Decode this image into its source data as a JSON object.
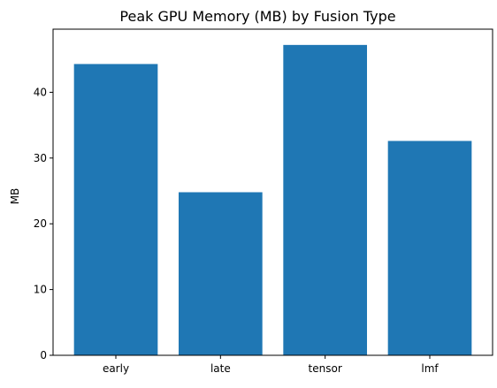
{
  "chart_data": {
    "type": "bar",
    "title": "Peak GPU Memory (MB) by Fusion Type",
    "xlabel": "",
    "ylabel": "MB",
    "categories": [
      "early",
      "late",
      "tensor",
      "lmf"
    ],
    "values": [
      44.3,
      24.8,
      47.2,
      32.6
    ],
    "ylim": [
      0,
      49.6
    ],
    "yticks": [
      0,
      10,
      20,
      30,
      40
    ],
    "bar_color": "#1f77b4",
    "grid": false,
    "legend": "none"
  }
}
